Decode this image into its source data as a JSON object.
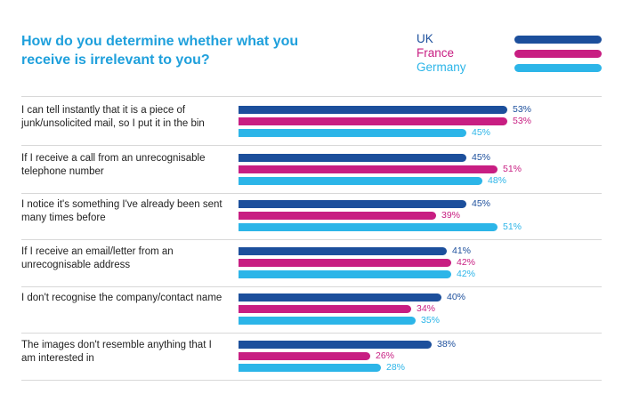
{
  "chart_data": {
    "type": "bar",
    "orientation": "horizontal",
    "title": "How do you determine whether what you receive is irrelevant to you?",
    "legend_position": "top-right",
    "max": 53,
    "series": [
      {
        "name": "UK",
        "color": "#1c4f9c",
        "values": [
          53,
          45,
          45,
          41,
          40,
          38
        ]
      },
      {
        "name": "France",
        "color": "#c81e82",
        "values": [
          53,
          51,
          39,
          42,
          34,
          26
        ]
      },
      {
        "name": "Germany",
        "color": "#2cb5e8",
        "values": [
          45,
          48,
          51,
          42,
          35,
          28
        ]
      }
    ],
    "categories": [
      "I can tell instantly that it is a piece of junk/unsolicited mail, so I put it in the bin",
      "If I receive a call from an unrecognisable telephone number",
      "I notice it's something I've already been sent many times before",
      "If I receive an email/letter from an unrecognisable address",
      "I don't recognise the company/contact name",
      "The images don't resemble anything that I am interested in"
    ],
    "value_labels": [
      [
        "53%",
        "45%",
        "45%",
        "41%",
        "40%",
        "38%"
      ],
      [
        "53%",
        "51%",
        "39%",
        "42%",
        "34%",
        "26%"
      ],
      [
        "45%",
        "48%",
        "51%",
        "42%",
        "35%",
        "28%"
      ]
    ]
  }
}
